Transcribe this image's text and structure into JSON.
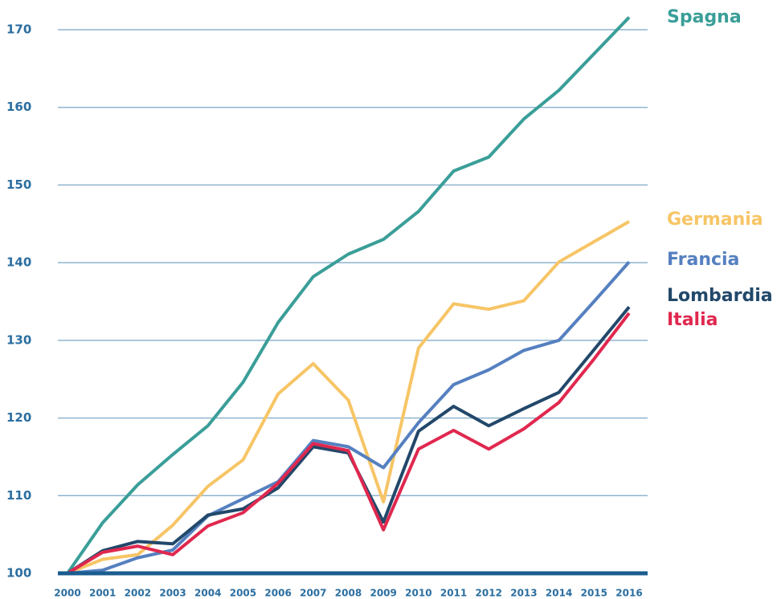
{
  "chart_data": {
    "type": "line",
    "x": [
      "2000",
      "2001",
      "2002",
      "2003",
      "2004",
      "2005",
      "2006",
      "2007",
      "2008",
      "2009",
      "2010",
      "2011",
      "2012",
      "2013",
      "2014",
      "2015",
      "2016"
    ],
    "series": [
      {
        "name": "Spagna",
        "color": "#3a9e98",
        "values": [
          100,
          106.5,
          111.4,
          115.3,
          119,
          124.6,
          132.3,
          138.2,
          141.1,
          143,
          146.6,
          151.8,
          153.6,
          158.5,
          162.2,
          166.9,
          171.6
        ]
      },
      {
        "name": "Germania",
        "color": "#f7c566",
        "values": [
          100,
          101.8,
          102.4,
          106.2,
          111.2,
          114.6,
          123.1,
          127,
          122.3,
          109.2,
          129,
          134.7,
          134,
          135.1,
          140.1,
          142.7,
          145.3
        ]
      },
      {
        "name": "Francia",
        "color": "#5580c0",
        "values": [
          100,
          100.4,
          102,
          103,
          107.4,
          109.6,
          111.8,
          117.1,
          116.3,
          113.6,
          119.4,
          124.3,
          126.2,
          128.7,
          130,
          135,
          140.1
        ]
      },
      {
        "name": "Lombardia",
        "color": "#22486a",
        "values": [
          100,
          102.9,
          104.1,
          103.8,
          107.5,
          108.3,
          111,
          116.3,
          115.5,
          106.6,
          118.3,
          121.5,
          119,
          121.2,
          123.3,
          128.8,
          134.3
        ]
      },
      {
        "name": "Italia",
        "color": "#e0284f",
        "values": [
          100,
          102.7,
          103.5,
          102.4,
          106.1,
          107.8,
          111.6,
          116.7,
          115.8,
          105.6,
          116,
          118.4,
          116,
          118.6,
          122,
          127.6,
          133.5
        ]
      }
    ],
    "ylim": [
      100,
      170
    ],
    "yticks": [
      100,
      110,
      120,
      130,
      140,
      150,
      160,
      170
    ],
    "grid": true
  }
}
